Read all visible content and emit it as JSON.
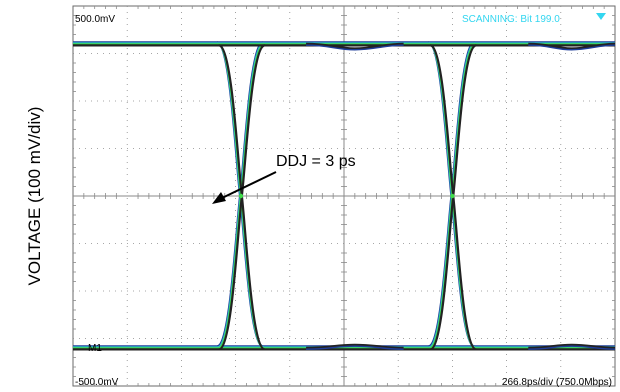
{
  "chart_data": {
    "type": "line",
    "title": "",
    "ylabel": "VOLTAGE (100 mV/div)",
    "xlabel": "",
    "grid": true,
    "divisions": {
      "x": 10,
      "y": 8
    },
    "scope_readouts": {
      "top_left": "500.0mV",
      "bottom_left": "-500.0mV",
      "status": "SCANNING: Bit 199.0",
      "timebase": "266.8ps/div (750.0Mbps)",
      "marker": "M1"
    },
    "annotation": {
      "text": "DDJ = 3 ps"
    },
    "ylim": [
      -500,
      500
    ],
    "xlim": [
      -5,
      5
    ],
    "levels_mV": {
      "high": 400,
      "low": -400,
      "crossing": 0
    },
    "crossings_div": [
      -1.9,
      2.0
    ],
    "transition_width_div": 0.85,
    "ringing": [
      {
        "level": "high",
        "x_div": [
          -0.7,
          1.1
        ],
        "dip_mV": -12
      },
      {
        "level": "low",
        "x_div": [
          -0.7,
          1.1
        ],
        "bump_mV": 8
      },
      {
        "level": "high",
        "x_div": [
          3.4,
          5.0
        ],
        "dip_mV": -12
      },
      {
        "level": "low",
        "x_div": [
          3.4,
          5.0
        ],
        "bump_mV": 8
      }
    ],
    "trace_colors": [
      "#1f3e9a",
      "#2cb8c8",
      "#3fdc4a",
      "#222222"
    ],
    "grid_color": "#8a8a8a"
  }
}
